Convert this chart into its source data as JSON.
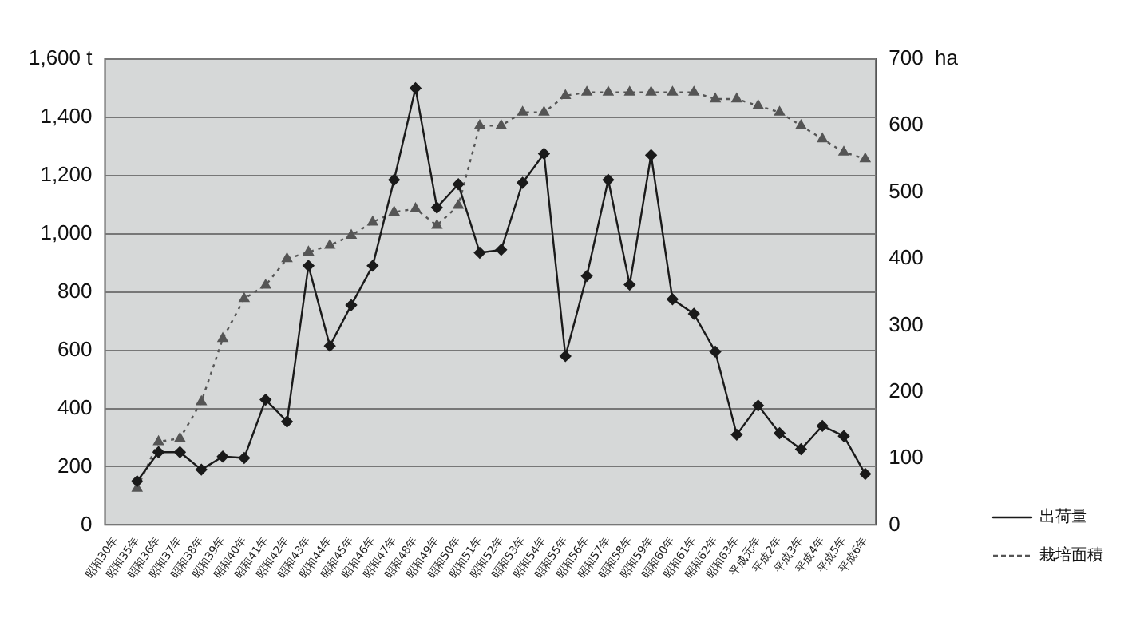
{
  "chart_data": {
    "type": "line",
    "categories": [
      "昭和30年",
      "昭和35年",
      "昭和36年",
      "昭和37年",
      "昭和38年",
      "昭和39年",
      "昭和40年",
      "昭和41年",
      "昭和42年",
      "昭和43年",
      "昭和44年",
      "昭和45年",
      "昭和46年",
      "昭和47年",
      "昭和48年",
      "昭和49年",
      "昭和50年",
      "昭和51年",
      "昭和52年",
      "昭和53年",
      "昭和54年",
      "昭和55年",
      "昭和56年",
      "昭和57年",
      "昭和58年",
      "昭和59年",
      "昭和60年",
      "昭和61年",
      "昭和62年",
      "昭和63年",
      "平成元年",
      "平成2年",
      "平成3年",
      "平成4年",
      "平成5年",
      "平成6年"
    ],
    "series": [
      {
        "name": "出荷量",
        "color": "#1a1a1a",
        "marker": "diamond",
        "line_style": "solid",
        "values": [
          null,
          150,
          250,
          250,
          190,
          235,
          230,
          430,
          355,
          890,
          615,
          755,
          890,
          1185,
          1500,
          1090,
          1170,
          935,
          945,
          1175,
          1275,
          580,
          855,
          1185,
          825,
          1270,
          775,
          725,
          595,
          310,
          410,
          315,
          260,
          340,
          305,
          175
        ]
      },
      {
        "name": "栽培面積",
        "color": "#555555",
        "marker": "triangle",
        "line_style": "dotted",
        "axis": "y2",
        "values": [
          null,
          55,
          125,
          130,
          185,
          280,
          340,
          360,
          400,
          410,
          420,
          435,
          455,
          470,
          475,
          450,
          480,
          600,
          600,
          620,
          620,
          645,
          650,
          650,
          650,
          650,
          650,
          650,
          640,
          640,
          630,
          620,
          600,
          580,
          560,
          550
        ]
      }
    ],
    "ylim": [
      0,
      1600
    ],
    "yticks": [
      0,
      200,
      {
        "value": 400,
        "label": "400"
      },
      600,
      800,
      {
        "value": 1000,
        "label": "1,000"
      },
      {
        "value": 1200,
        "label": "1,200"
      },
      {
        "value": 1400,
        "label": "1,400"
      },
      {
        "value": 1600,
        "label": "1,600 t"
      }
    ],
    "y2lim": [
      0,
      700
    ],
    "y2ticks": [
      0,
      100,
      200,
      300,
      400,
      500,
      600,
      {
        "value": 700,
        "label": "700  ha"
      }
    ],
    "grid": "y",
    "legend": "bottom right"
  }
}
